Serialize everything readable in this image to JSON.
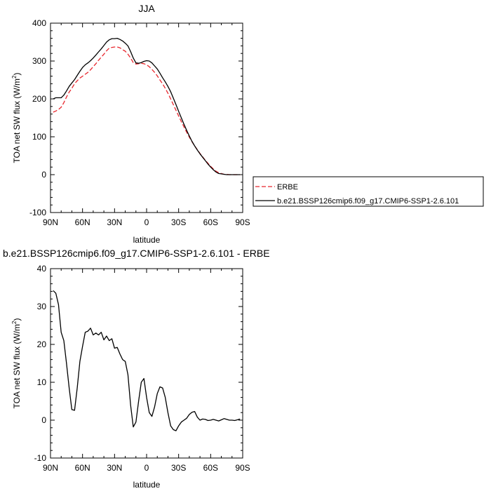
{
  "chart_data": [
    {
      "type": "line",
      "title": "JJA",
      "xlabel": "latitude",
      "ylabel": "TOA net SW flux (W/m²)",
      "ylabel_main": "TOA net SW flux (W/m",
      "ylabel_sup": "2",
      "ylabel_tail": ")",
      "xlim": [
        90,
        -90
      ],
      "ylim": [
        -100,
        400
      ],
      "xticks": [
        90,
        60,
        30,
        0,
        -30,
        -60,
        -90
      ],
      "xticklabels": [
        "90N",
        "60N",
        "30N",
        "0",
        "30S",
        "60S",
        "90S"
      ],
      "yticks": [
        -100,
        0,
        100,
        200,
        300,
        400
      ],
      "yticklabels": [
        "-100",
        "0",
        "100",
        "200",
        "300",
        "400"
      ],
      "legend": {
        "placement": "right",
        "entries": [
          "ERBE",
          "b.e21.BSSP126cmip6.f09_g17.CMIP6-SSP1-2.6.101"
        ]
      },
      "series": [
        {
          "name": "ERBE",
          "color": "#e8262d",
          "dash": "dashed",
          "x": [
            87.5,
            85,
            82.5,
            80,
            77.5,
            75,
            72.5,
            70,
            67.5,
            65,
            62.5,
            60,
            57.5,
            55,
            52.5,
            50,
            47.5,
            45,
            42.5,
            40,
            37.5,
            35,
            32.5,
            30,
            27.5,
            25,
            22.5,
            20,
            17.5,
            15,
            12.5,
            10,
            7.5,
            5,
            2.5,
            0,
            -2.5,
            -5,
            -7.5,
            -10,
            -12.5,
            -15,
            -17.5,
            -20,
            -22.5,
            -25,
            -27.5,
            -30,
            -32.5,
            -35,
            -37.5,
            -40,
            -42.5,
            -45,
            -47.5,
            -50,
            -52.5,
            -55,
            -57.5,
            -60,
            -62.5,
            -65,
            -67.5,
            -70,
            -72.5,
            -75,
            -77.5,
            -80,
            -82.5,
            -85,
            -87.5
          ],
          "y": [
            165,
            168,
            172,
            178,
            190,
            205,
            218,
            228,
            240,
            248,
            255,
            260,
            265,
            270,
            277,
            285,
            293,
            302,
            310,
            318,
            327,
            334,
            336,
            337,
            337,
            335,
            330,
            326,
            318,
            308,
            296,
            292,
            293,
            294,
            293,
            290,
            285,
            278,
            270,
            261,
            250,
            240,
            228,
            215,
            200,
            185,
            170,
            155,
            140,
            126,
            112,
            99,
            87,
            76,
            66,
            56,
            47,
            38,
            30,
            22,
            15,
            9,
            5,
            3,
            1,
            1,
            0,
            0,
            0,
            0,
            0
          ]
        },
        {
          "name": "b.e21.BSSP126cmip6.f09_g17.CMIP6-SSP1-2.6.101",
          "color": "#000000",
          "dash": "solid",
          "x": [
            87.5,
            85,
            82.5,
            80,
            77.5,
            75,
            72.5,
            70,
            67.5,
            65,
            62.5,
            60,
            57.5,
            55,
            52.5,
            50,
            47.5,
            45,
            42.5,
            40,
            37.5,
            35,
            32.5,
            30,
            27.5,
            25,
            22.5,
            20,
            17.5,
            15,
            12.5,
            10,
            7.5,
            5,
            2.5,
            0,
            -2.5,
            -5,
            -7.5,
            -10,
            -12.5,
            -15,
            -17.5,
            -20,
            -22.5,
            -25,
            -27.5,
            -30,
            -32.5,
            -35,
            -37.5,
            -40,
            -42.5,
            -45,
            -47.5,
            -50,
            -52.5,
            -55,
            -57.5,
            -60,
            -62.5,
            -65,
            -67.5,
            -70,
            -72.5,
            -75,
            -77.5,
            -80,
            -82.5,
            -85,
            -87.5
          ],
          "y": [
            200,
            203,
            203,
            203,
            210,
            221,
            233,
            242,
            251,
            262,
            273,
            283,
            290,
            295,
            301,
            308,
            316,
            324,
            332,
            341,
            350,
            356,
            359,
            359,
            360,
            357,
            353,
            347,
            340,
            325,
            308,
            295,
            294,
            296,
            299,
            301,
            300,
            295,
            287,
            279,
            268,
            256,
            245,
            233,
            219,
            202,
            185,
            167,
            150,
            133,
            117,
            102,
            88,
            76,
            65,
            55,
            46,
            37,
            28,
            20,
            13,
            7,
            3,
            2,
            1,
            0,
            0,
            0,
            0,
            0,
            0
          ]
        }
      ]
    },
    {
      "type": "line",
      "title": "b.e21.BSSP126cmip6.f09_g17.CMIP6-SSP1-2.6.101 - ERBE",
      "xlabel": "latitude",
      "ylabel": "TOA net SW flux (W/m²)",
      "ylabel_main": "TOA net SW flux (W/m",
      "ylabel_sup": "2",
      "ylabel_tail": ")",
      "xlim": [
        90,
        -90
      ],
      "ylim": [
        -10,
        40
      ],
      "xticks": [
        90,
        60,
        30,
        0,
        -30,
        -60,
        -90
      ],
      "xticklabels": [
        "90N",
        "60N",
        "30N",
        "0",
        "30S",
        "60S",
        "90S"
      ],
      "yticks": [
        -10,
        0,
        10,
        20,
        30,
        40
      ],
      "yticklabels": [
        "-10",
        "0",
        "10",
        "20",
        "30",
        "40"
      ],
      "series": [
        {
          "color": "#000000",
          "dash": "solid",
          "x": [
            87.5,
            85,
            82.5,
            80,
            77.5,
            75,
            72.5,
            70,
            67.5,
            65,
            62.5,
            60,
            57.5,
            55,
            52.5,
            50,
            47.5,
            45,
            42.5,
            40,
            37.5,
            35,
            32.5,
            30,
            27.5,
            25,
            22.5,
            20,
            17.5,
            15,
            12.5,
            10,
            7.5,
            5,
            2.5,
            0,
            -2.5,
            -5,
            -7.5,
            -10,
            -12.5,
            -15,
            -17.5,
            -20,
            -22.5,
            -25,
            -27.5,
            -30,
            -32.5,
            -35,
            -37.5,
            -40,
            -42.5,
            -45,
            -47.5,
            -50,
            -52.5,
            -55,
            -57.5,
            -60,
            -62.5,
            -65,
            -67.5,
            -70,
            -72.5,
            -75,
            -77.5,
            -80,
            -82.5,
            -85,
            -87.5
          ],
          "y": [
            34.2,
            33.5,
            30.5,
            23.2,
            21,
            15,
            8.5,
            2.8,
            2.6,
            8.5,
            15.5,
            19.5,
            23.2,
            23.5,
            24.3,
            22.5,
            23,
            22.5,
            23.2,
            21.2,
            22.2,
            21,
            21.5,
            19,
            19.2,
            17.5,
            16,
            15.5,
            12,
            4,
            -1.8,
            -0.5,
            5,
            10,
            11,
            6,
            2,
            1,
            3.5,
            7,
            8.8,
            8.5,
            6,
            2,
            -1.5,
            -2.5,
            -2.8,
            -1.5,
            -0.5,
            0,
            0.5,
            1.5,
            2.1,
            2.3,
            0.8,
            0,
            0.3,
            0.2,
            -0.1,
            0,
            0.2,
            0,
            -0.2,
            0.1,
            0.4,
            0.2,
            0,
            0,
            -0.1,
            0.1,
            0.3
          ]
        }
      ]
    }
  ]
}
